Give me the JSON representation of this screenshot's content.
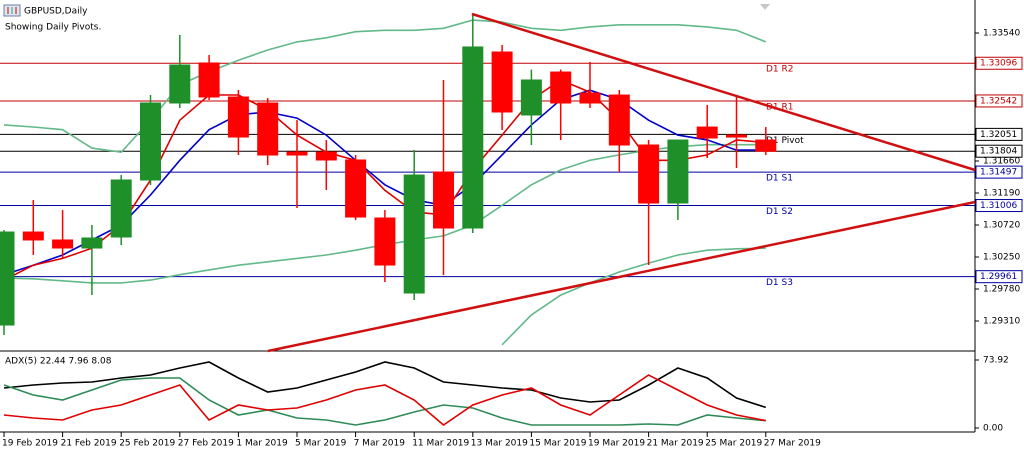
{
  "chart_data": [
    {
      "type": "candlestick",
      "title": "GBPUSD,Daily",
      "subtitle": "Showing Daily Pivots.",
      "categories": [
        "19 Feb 2019",
        null,
        "21 Feb 2019",
        null,
        "25 Feb 2019",
        null,
        "27 Feb 2019",
        null,
        "1 Mar 2019",
        null,
        "5 Mar 2019",
        null,
        "7 Mar 2019",
        null,
        "11 Mar 2019",
        null,
        "13 Mar 2019",
        null,
        "15 Mar 2019",
        null,
        "19 Mar 2019",
        null,
        "21 Mar 2019",
        null,
        "25 Mar 2019",
        null,
        "27 Mar 2019"
      ],
      "open": [
        1.29251,
        1.30617,
        1.305,
        1.30382,
        1.30544,
        1.31381,
        1.32512,
        1.331,
        1.326,
        1.32512,
        1.31792,
        1.31792,
        1.31675,
        1.30823,
        1.29721,
        1.31498,
        1.30676,
        1.33261,
        1.32336,
        1.32967,
        1.32659,
        1.32629,
        1.31895,
        1.31043,
        1.32159,
        1.32042,
        1.31968
      ],
      "high": [
        1.30646,
        1.31087,
        1.3094,
        1.3072,
        1.31454,
        1.32629,
        1.33511,
        1.33217,
        1.32703,
        1.32585,
        1.32262,
        1.31968,
        1.31748,
        1.3094,
        1.31822,
        1.3285,
        1.33805,
        1.33364,
        1.33003,
        1.33003,
        1.33114,
        1.32703,
        1.31968,
        1.31968,
        1.32483,
        1.326,
        1.32159
      ],
      "low": [
        1.29104,
        1.3028,
        1.30235,
        1.29692,
        1.30426,
        1.31307,
        1.32438,
        1.32556,
        1.31748,
        1.31601,
        1.3097,
        1.31234,
        1.30793,
        1.29883,
        1.29618,
        1.29985,
        1.30602,
        1.32115,
        1.31895,
        1.31968,
        1.32438,
        1.31498,
        1.30132,
        1.30793,
        1.31704,
        1.31557,
        1.31748
      ],
      "close": [
        1.30617,
        1.305,
        1.30382,
        1.30529,
        1.31381,
        1.32512,
        1.3307,
        1.326,
        1.32012,
        1.31748,
        1.31748,
        1.31675,
        1.30837,
        1.30132,
        1.31454,
        1.30676,
        1.33335,
        1.3238,
        1.3285,
        1.32512,
        1.32512,
        1.31895,
        1.31043,
        1.31968,
        1.31998,
        1.32012,
        1.31804
      ],
      "up_color": "#1f8f2a",
      "down_color": "#ff0000",
      "series": [
        {
          "color": "#62b98a",
          "values": [
            1.3219,
            1.3216,
            1.3212,
            1.3185,
            1.3179,
            1.3226,
            1.3278,
            1.3297,
            1.3314,
            1.3329,
            1.3341,
            1.3347,
            1.3356,
            1.3358,
            1.3358,
            1.3361,
            1.3373,
            1.337,
            1.3361,
            1.3358,
            1.3363,
            1.3366,
            1.3366,
            1.3366,
            1.3363,
            1.3358,
            1.3341
          ]
        },
        {
          "color": "#62b98a",
          "values": [
            1.2994,
            1.2993,
            1.299,
            1.2987,
            1.2987,
            1.2991,
            1.2999,
            1.3006,
            1.3013,
            1.3018,
            1.3023,
            1.3028,
            1.3035,
            1.3043,
            1.305,
            1.3056,
            1.3072,
            1.3101,
            1.3131,
            1.3153,
            1.3167,
            1.3175,
            1.3182,
            1.3187,
            1.319,
            1.319,
            1.319
          ]
        },
        {
          "color": "#62b98a",
          "values": [
            null,
            null,
            null,
            null,
            null,
            null,
            null,
            null,
            null,
            null,
            null,
            null,
            null,
            null,
            null,
            null,
            null,
            1.2896,
            1.294,
            1.2969,
            1.2987,
            1.3003,
            1.3016,
            1.3028,
            1.3035,
            1.3037,
            1.3038
          ]
        },
        {
          "color": "#0000c8",
          "values": [
            1.2999,
            1.3013,
            1.3028,
            1.305,
            1.3072,
            1.3116,
            1.3167,
            1.3212,
            1.3234,
            1.3238,
            1.3229,
            1.3204,
            1.3167,
            1.3131,
            1.3109,
            1.3101,
            1.3131,
            1.3175,
            1.3219,
            1.3256,
            1.327,
            1.3256,
            1.3226,
            1.3204,
            1.3197,
            1.3182,
            1.3182
          ]
        },
        {
          "color": "#e00000",
          "values": [
            1.2991,
            1.3013,
            1.3023,
            1.3038,
            1.3072,
            1.3138,
            1.3226,
            1.3263,
            1.3263,
            1.3241,
            1.3204,
            1.3179,
            1.3167,
            1.3123,
            1.3091,
            1.3087,
            1.3153,
            1.3204,
            1.3256,
            1.3285,
            1.3267,
            1.3226,
            1.3167,
            1.3167,
            1.3175,
            1.3197,
            1.3193
          ]
        }
      ],
      "pivots": [
        {
          "name": "D1 R2",
          "value": 1.33096,
          "color": "#c00000"
        },
        {
          "name": "D1 R1",
          "value": 1.32542,
          "color": "#c00000"
        },
        {
          "name": "D1 Pivot",
          "value": 1.32051,
          "color": "#000000"
        },
        {
          "name": "D1 S1",
          "value": 1.31497,
          "color": "#0000a0"
        },
        {
          "name": "D1 S2",
          "value": 1.31006,
          "color": "#0000a0"
        },
        {
          "name": "D1 S3",
          "value": 1.29961,
          "color": "#0000a0"
        }
      ],
      "current_price": 1.31804,
      "ylim": [
        1.28884,
        1.34025
      ],
      "yticks": [
        {
          "value": 1.3354,
          "label": "1.33540"
        },
        {
          "value": 1.3166,
          "label": "1.31660"
        },
        {
          "value": 1.3119,
          "label": "1.31190"
        },
        {
          "value": 1.3072,
          "label": "1.30720"
        },
        {
          "value": 1.3025,
          "label": "1.30250"
        },
        {
          "value": 1.2978,
          "label": "1.29780"
        },
        {
          "value": 1.2931,
          "label": "1.29310"
        }
      ],
      "grid": false
    },
    {
      "type": "line",
      "title": "ADX(5) 22.44 7.96 8.08",
      "series": [
        {
          "color": "#000000",
          "values": [
            43.5,
            46.7,
            48.9,
            50.0,
            54.3,
            57.6,
            65.2,
            71.7,
            54.3,
            39.1,
            43.5,
            52.2,
            60.9,
            71.7,
            65.2,
            50.0,
            46.7,
            43.5,
            41.3,
            32.6,
            28.3,
            30.4,
            46.7,
            65.2,
            54.3,
            32.6,
            22.44
          ]
        },
        {
          "color": "#2e8b57",
          "values": [
            46.7,
            35.9,
            30.4,
            41.3,
            52.2,
            54.3,
            54.3,
            30.4,
            14.1,
            19.6,
            10.9,
            8.7,
            3.3,
            8.7,
            17.4,
            25.0,
            21.7,
            10.9,
            3.3,
            3.3,
            3.3,
            3.3,
            4.3,
            3.3,
            14.1,
            10.9,
            7.96
          ]
        },
        {
          "color": "#e00000",
          "values": [
            14.1,
            10.9,
            8.7,
            19.6,
            25.0,
            35.9,
            46.7,
            8.7,
            25.0,
            19.6,
            21.7,
            30.4,
            41.3,
            46.7,
            30.4,
            3.3,
            25.0,
            35.9,
            43.5,
            25.0,
            14.1,
            35.9,
            57.6,
            41.3,
            25.0,
            14.1,
            8.08
          ]
        }
      ],
      "ylim": [
        0,
        82.6
      ],
      "yticks": [
        73.92,
        {
          "value": 0,
          "label": "0.00"
        }
      ]
    }
  ]
}
